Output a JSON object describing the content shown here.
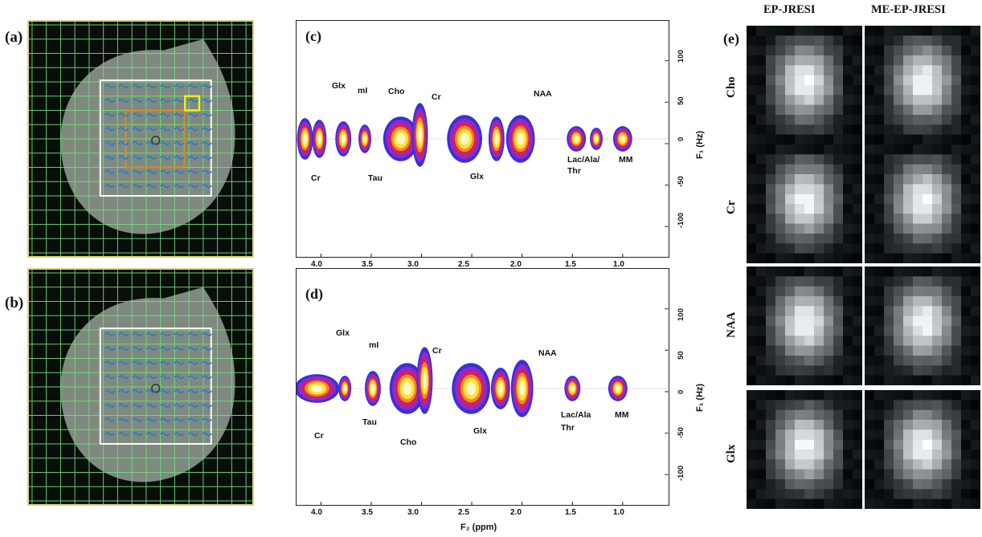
{
  "panel_a": {
    "letter": "(a)"
  },
  "panel_b": {
    "letter": "(b)"
  },
  "panel_c": {
    "letter": "(c)",
    "labels": {
      "glx_top": "Glx",
      "mi": "mI",
      "cho": "Cho",
      "cr_top": "Cr",
      "naa": "NAA",
      "cr_bottom": "Cr",
      "tau": "Tau",
      "glx_bottom": "Glx",
      "lac_line1": "Lac/Ala/",
      "lac_line2": "Thr",
      "mm": "MM"
    }
  },
  "panel_d": {
    "letter": "(d)",
    "labels": {
      "glx_top": "Glx",
      "mi": "mI",
      "cr_top": "Cr",
      "naa": "NAA",
      "cr_bottom": "Cr",
      "tau": "Tau",
      "cho": "Cho",
      "glx_bottom": "Glx",
      "lac_line1": "Lac/Ala",
      "lac_line2": "Thr",
      "mm": "MM"
    }
  },
  "panel_e": {
    "letter": "(e)",
    "col_headers": [
      "EP-JRESI",
      "ME-EP-JRESI"
    ],
    "row_headers": [
      "Cho",
      "Cr",
      "NAA",
      "Glx"
    ]
  },
  "axes": {
    "x_ticks": [
      "4.0",
      "3.5",
      "3.0",
      "2.5",
      "2.0",
      "1.5",
      "1.0"
    ],
    "y_ticks": [
      "100",
      "50",
      "0",
      "-50",
      "-100"
    ],
    "x_title": "F₂ (ppm)",
    "y_title": "F₁ (Hz)"
  },
  "colors": {
    "grid": "#6fe27a",
    "frame": "#d9cf7a",
    "roi_white": "#ffffff",
    "roi_orange": "#e08a1e",
    "roi_yellow": "#f2ee18",
    "contour_outer": "#3b2fd6",
    "contour_mid": "#d61f5a",
    "contour_inner": "#ffe23a"
  }
}
